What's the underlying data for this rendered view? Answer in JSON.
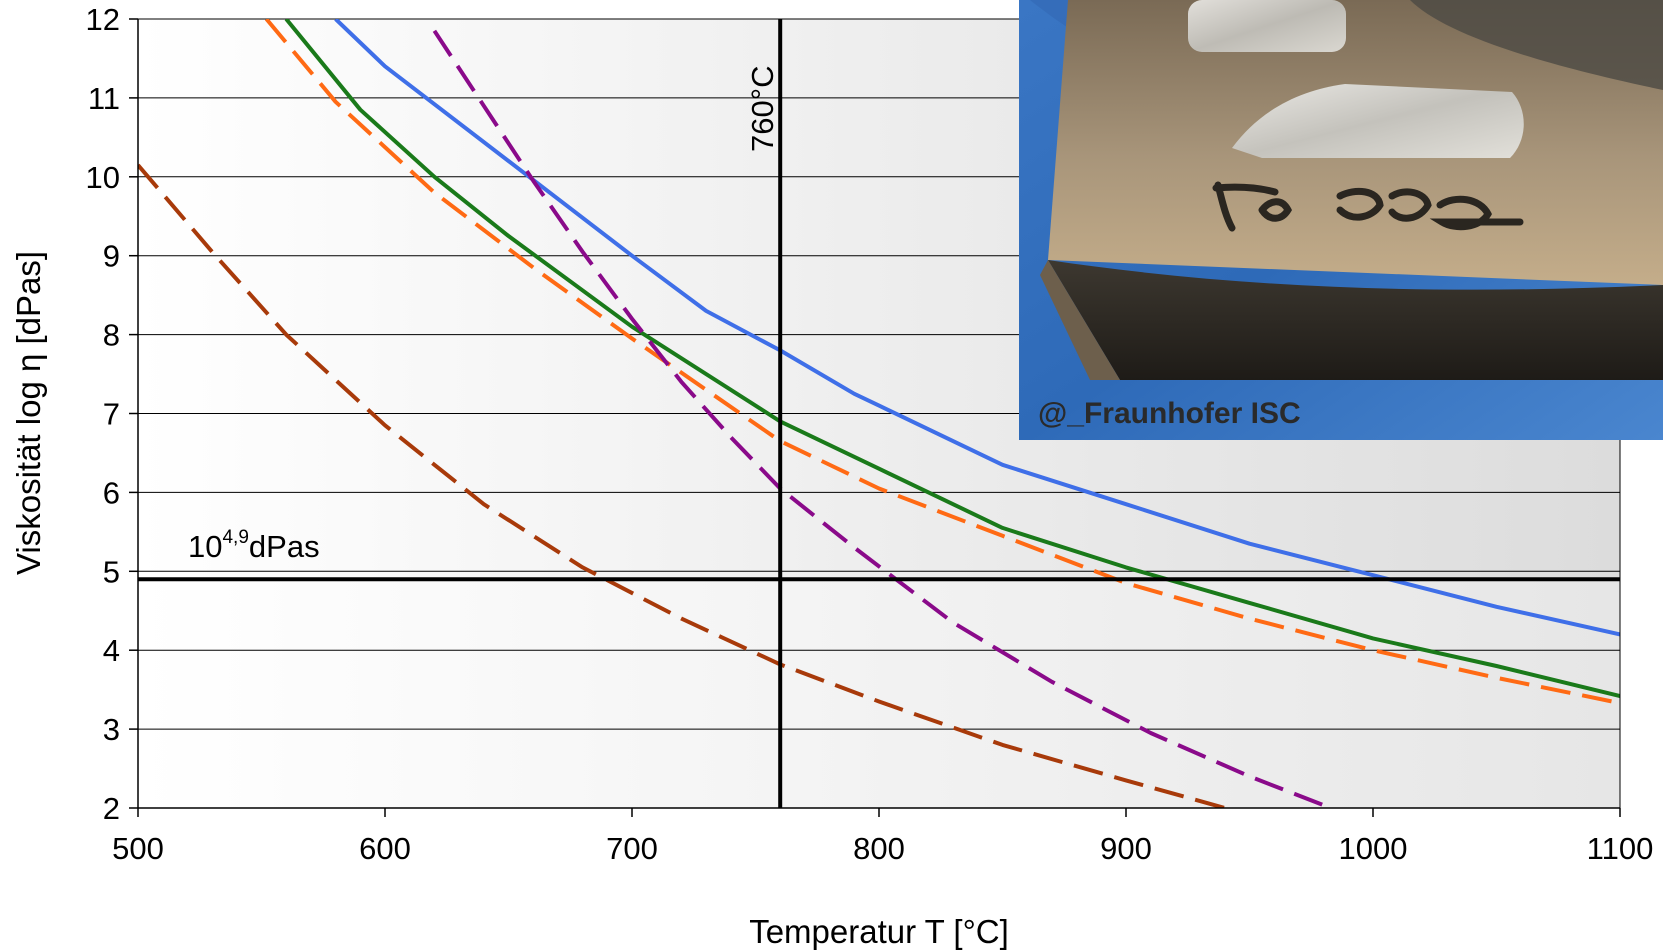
{
  "chart_data": {
    "type": "line",
    "xlabel": "Temperatur T [°C]",
    "ylabel": "Viskosität log η [dPas]",
    "xlim": [
      500,
      1100
    ],
    "ylim": [
      2,
      12
    ],
    "x_ticks": [
      500,
      600,
      700,
      800,
      900,
      1000,
      1100
    ],
    "y_ticks": [
      2,
      3,
      4,
      5,
      6,
      7,
      8,
      9,
      10,
      11,
      12
    ],
    "grid": "horizontal",
    "reference_lines": {
      "vertical": {
        "x": 760,
        "label": "760°C"
      },
      "horizontal": {
        "y": 4.9,
        "label_base": "10",
        "label_exp": "4,9",
        "label_unit": "dPas"
      }
    },
    "series": [
      {
        "color": "#3f6fe8",
        "style": "solid",
        "x": [
          580,
          600,
          650,
          700,
          730,
          760,
          790,
          800,
          850,
          900,
          950,
          1000,
          1050,
          1100
        ],
        "y": [
          12,
          11.4,
          10.2,
          9.0,
          8.3,
          7.8,
          7.25,
          7.1,
          6.35,
          5.85,
          5.35,
          4.95,
          4.55,
          4.2
        ]
      },
      {
        "color": "#1a7a1a",
        "style": "solid",
        "x": [
          560,
          590,
          620,
          650,
          700,
          760,
          800,
          850,
          900,
          950,
          1000,
          1050,
          1100
        ],
        "y": [
          12,
          10.85,
          10.0,
          9.25,
          8.1,
          6.9,
          6.3,
          5.55,
          5.05,
          4.6,
          4.15,
          3.8,
          3.42
        ]
      },
      {
        "color": "#ff6a14",
        "style": "dashed",
        "x": [
          552,
          580,
          620,
          660,
          700,
          760,
          800,
          850,
          900,
          950,
          1000,
          1050,
          1100
        ],
        "y": [
          12,
          10.95,
          9.8,
          8.85,
          7.95,
          6.65,
          6.05,
          5.45,
          4.85,
          4.4,
          4.0,
          3.65,
          3.33
        ]
      },
      {
        "color": "#8a0a8a",
        "style": "dashed",
        "x": [
          620,
          640,
          660,
          680,
          700,
          720,
          740,
          760,
          790,
          830,
          870,
          910,
          950,
          983
        ],
        "y": [
          11.85,
          10.9,
          9.95,
          9.05,
          8.2,
          7.4,
          6.7,
          6.05,
          5.3,
          4.35,
          3.6,
          2.95,
          2.4,
          2.0
        ]
      },
      {
        "color": "#a83a0a",
        "style": "dashed",
        "x": [
          500,
          530,
          560,
          600,
          640,
          680,
          720,
          760,
          800,
          850,
          900,
          940
        ],
        "y": [
          10.15,
          9.05,
          8.0,
          6.85,
          5.85,
          5.05,
          4.4,
          3.82,
          3.35,
          2.8,
          2.35,
          2.0
        ]
      }
    ]
  },
  "photo": {
    "credit": "@_Fraunhofer ISC"
  }
}
